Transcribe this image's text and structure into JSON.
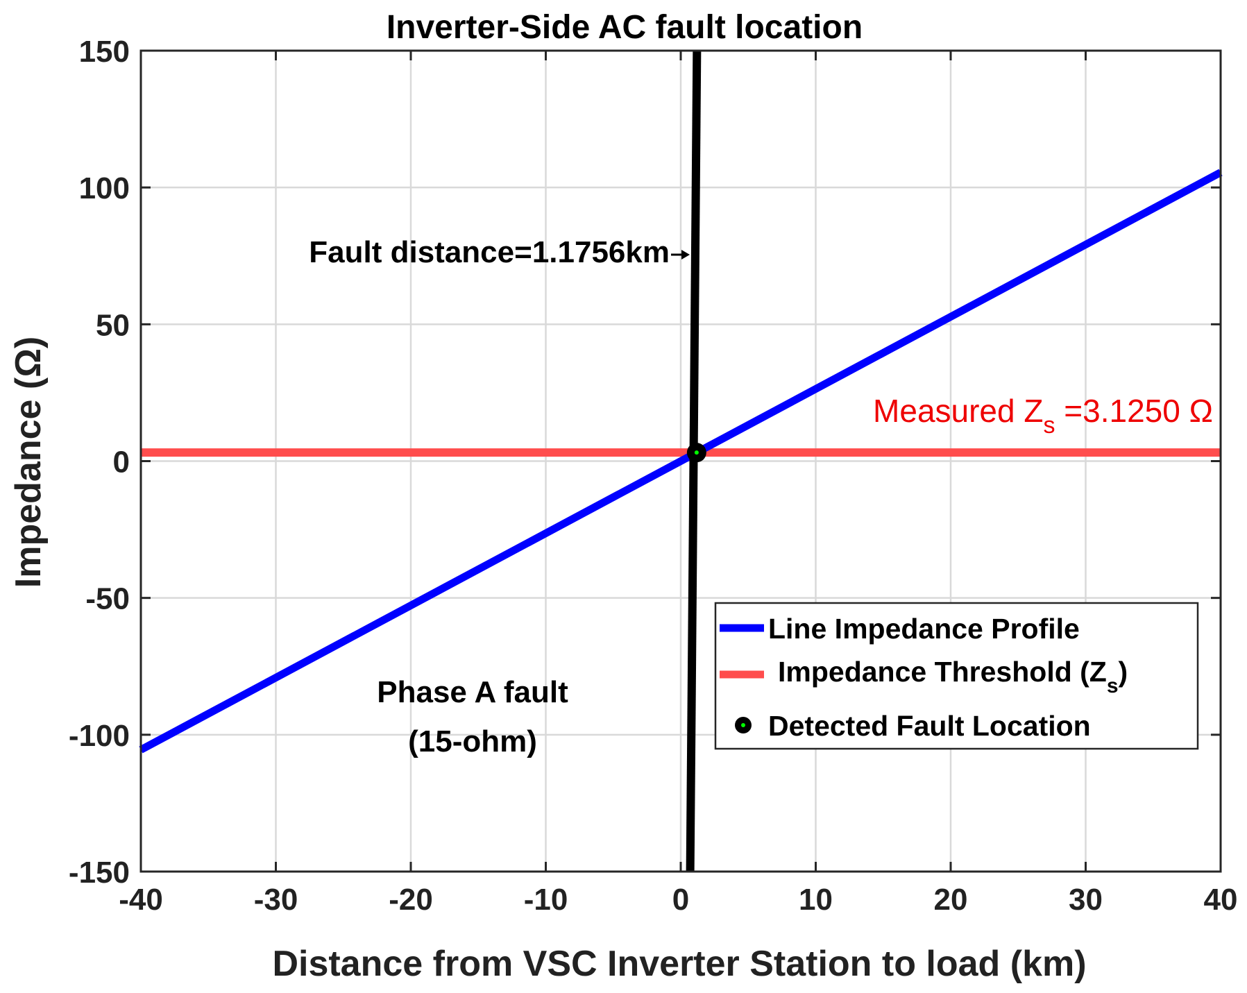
{
  "chart_data": {
    "type": "line",
    "title": "Inverter-Side AC fault location",
    "xlabel": "Distance from VSC Inverter Station to load (km)",
    "ylabel": "Impedance (Ω)",
    "xlim": [
      -40,
      40
    ],
    "ylim": [
      -150,
      150
    ],
    "xticks": [
      -40,
      -30,
      -20,
      -10,
      0,
      10,
      20,
      30,
      40
    ],
    "yticks": [
      -150,
      -100,
      -50,
      0,
      50,
      100,
      150
    ],
    "grid": true,
    "legend_position": "bottom-right",
    "series": [
      {
        "name": "Line Impedance Profile",
        "color": "#0000ff",
        "x": [
          -40,
          40
        ],
        "y": [
          -105.5,
          105.5
        ]
      },
      {
        "name": "Impedance Threshold (Zs)",
        "label_main": "Impedance Threshold (Z",
        "label_sub": "s",
        "label_end": ")",
        "color": "#ff4d4d",
        "x": [
          -40,
          40
        ],
        "y": [
          3.125,
          3.125
        ]
      },
      {
        "name": "Detected Fault Location",
        "type": "scatter",
        "color": "#000000",
        "inner_color": "#00ff00",
        "x": [
          1.1756
        ],
        "y": [
          3.125
        ]
      }
    ],
    "vertical_line": {
      "x_top": 1.2,
      "x_bottom": 0.7,
      "y": [
        150,
        -150
      ],
      "color": "#000000"
    },
    "annotations": {
      "fault_distance": "Fault distance=1.1756km",
      "phase_line1": "Phase A fault",
      "phase_line2": "(15-ohm)",
      "measured_main": "Measured Z",
      "measured_sub": "s",
      "measured_end": " =3.1250 Ω"
    }
  }
}
